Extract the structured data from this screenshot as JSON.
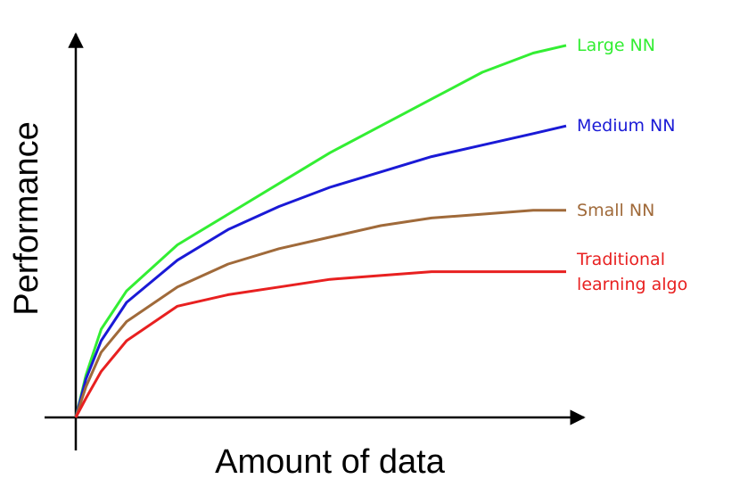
{
  "chart_data": {
    "type": "line",
    "x_label": "Amount of data",
    "y_label": "Performance",
    "x": [
      0,
      2,
      5,
      10,
      20,
      30,
      40,
      50,
      60,
      70,
      80,
      90,
      96.5
    ],
    "xlim": [
      0,
      100
    ],
    "ylim": [
      0,
      100
    ],
    "series": [
      {
        "name": "Large NN",
        "color": "#33ee33",
        "values": [
          0,
          11,
          23,
          33,
          45,
          53,
          61,
          69,
          76,
          83,
          90,
          95,
          97
        ]
      },
      {
        "name": "Medium NN",
        "color": "#1a1ad6",
        "values": [
          0,
          10,
          20,
          30,
          41,
          49,
          55,
          60,
          64,
          68,
          71,
          74,
          76
        ]
      },
      {
        "name": "Small NN",
        "color": "#a06a3a",
        "values": [
          0,
          8,
          17,
          25,
          34,
          40,
          44,
          47,
          50,
          52,
          53,
          54,
          54
        ]
      },
      {
        "name": "Traditional learning algo",
        "color": "#e82020",
        "values": [
          0,
          5,
          12,
          20,
          29,
          32,
          34,
          36,
          37,
          38,
          38,
          38,
          38
        ]
      }
    ]
  }
}
